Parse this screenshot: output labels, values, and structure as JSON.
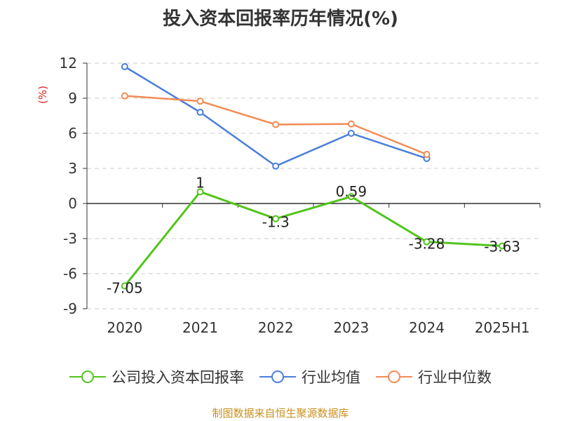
{
  "title": "投入资本回报率历年情况(%)",
  "unit": "(%)",
  "source": "制图数据来自恒生聚源数据库",
  "chart_data": {
    "type": "line",
    "title": "投入资本回报率历年情况(%)",
    "ylabel": "(%)",
    "categories": [
      "2020",
      "2021",
      "2022",
      "2023",
      "2024",
      "2025H1"
    ],
    "ylim": [
      -9,
      12
    ],
    "yticks": [
      12,
      9,
      6,
      3,
      0,
      -3,
      -6,
      -9
    ],
    "grid": true,
    "legend_position": "bottom",
    "series": [
      {
        "name": "公司投入资本回报率",
        "color": "#52c41a",
        "values": [
          -7.05,
          1,
          -1.3,
          0.59,
          -3.28,
          -3.63
        ],
        "labels": [
          "-7.05",
          "1",
          "-1.3",
          "0.59",
          "-3.28",
          "-3.63"
        ]
      },
      {
        "name": "行业均值",
        "color": "#4a7fd9",
        "values": [
          11.7,
          7.8,
          3.2,
          6.0,
          3.85,
          null
        ]
      },
      {
        "name": "行业中位数",
        "color": "#f28b54",
        "values": [
          9.2,
          8.75,
          6.75,
          6.8,
          4.2,
          null
        ]
      }
    ]
  }
}
